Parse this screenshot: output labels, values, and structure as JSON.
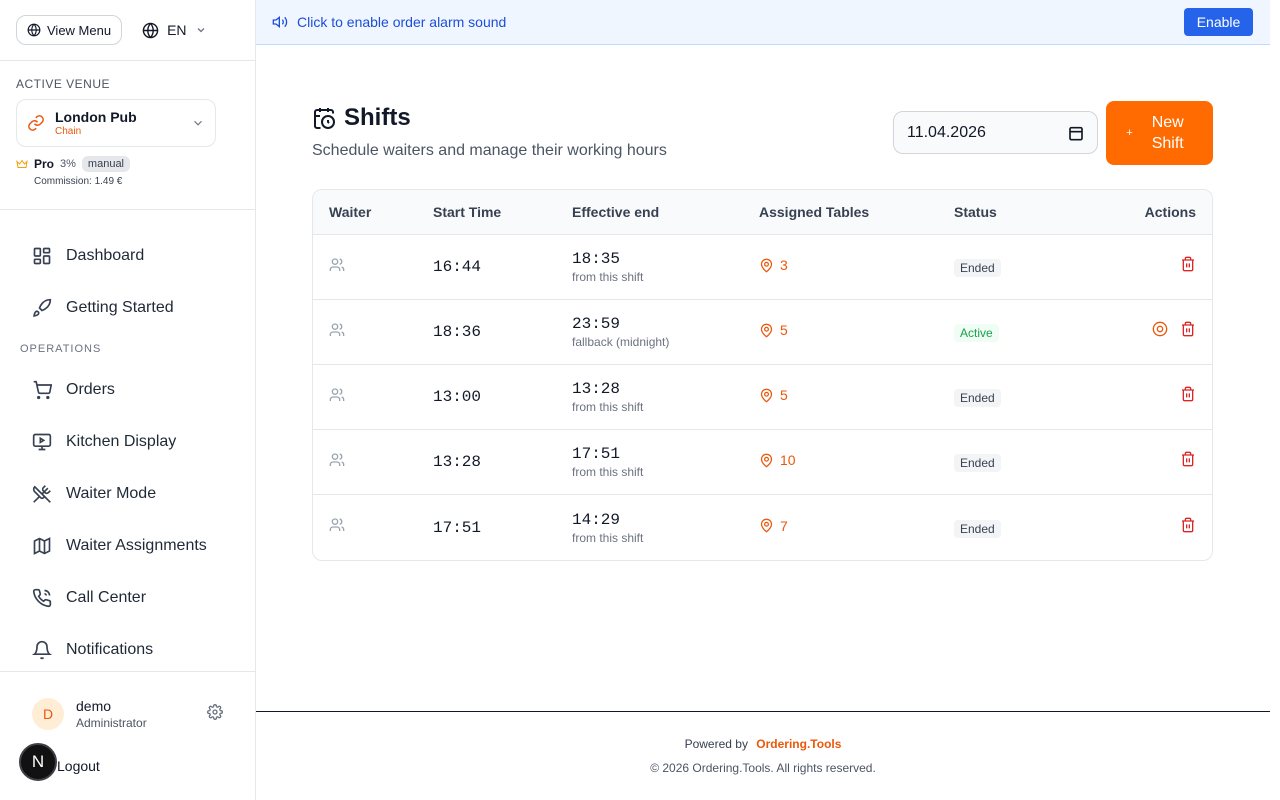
{
  "sidebar": {
    "view_menu_label": "View Menu",
    "language": "EN",
    "active_venue_label": "ACTIVE VENUE",
    "venue": {
      "name": "London Pub",
      "type": "Chain"
    },
    "plan": {
      "name": "Pro",
      "percent": "3%",
      "badge": "manual",
      "commission": "Commission: 1.49 €"
    },
    "nav_main": [
      {
        "label": "Dashboard",
        "icon": "dashboard-icon"
      },
      {
        "label": "Getting Started",
        "icon": "rocket-icon"
      }
    ],
    "section_operations": "OPERATIONS",
    "nav_operations": [
      {
        "label": "Orders",
        "icon": "cart-icon"
      },
      {
        "label": "Kitchen Display",
        "icon": "monitor-play-icon"
      },
      {
        "label": "Waiter Mode",
        "icon": "utensils-crossed-icon"
      },
      {
        "label": "Waiter Assignments",
        "icon": "map-icon"
      },
      {
        "label": "Call Center",
        "icon": "phone-icon"
      },
      {
        "label": "Notifications",
        "icon": "bell-icon"
      }
    ],
    "user": {
      "initial": "D",
      "name": "demo",
      "role": "Administrator"
    },
    "logout_label": "Logout",
    "n_badge": "N"
  },
  "banner": {
    "text": "Click to enable order alarm sound",
    "button_label": "Enable"
  },
  "main": {
    "title": "Shifts",
    "subtitle": "Schedule waiters and manage their working hours",
    "date_value": "11.04.2026",
    "new_shift_label": "New Shift",
    "new_shift_icon": "+"
  },
  "table": {
    "headers": {
      "waiter": "Waiter",
      "start": "Start Time",
      "end": "Effective end",
      "tables": "Assigned Tables",
      "status": "Status",
      "actions": "Actions"
    },
    "rows": [
      {
        "start": "16:44",
        "end": "18:35",
        "end_note": "from this shift",
        "tables": "3",
        "status": "Ended",
        "active": false
      },
      {
        "start": "18:36",
        "end": "23:59",
        "end_note": "fallback (midnight)",
        "tables": "5",
        "status": "Active",
        "active": true
      },
      {
        "start": "13:00",
        "end": "13:28",
        "end_note": "from this shift",
        "tables": "5",
        "status": "Ended",
        "active": false
      },
      {
        "start": "13:28",
        "end": "17:51",
        "end_note": "from this shift",
        "tables": "10",
        "status": "Ended",
        "active": false
      },
      {
        "start": "17:51",
        "end": "14:29",
        "end_note": "from this shift",
        "tables": "7",
        "status": "Ended",
        "active": false
      }
    ]
  },
  "footer": {
    "powered_by": "Powered by",
    "brand": "Ordering.Tools",
    "copyright": "© 2026 Ordering.Tools. All rights reserved."
  },
  "colors": {
    "accent": "#ff6b00",
    "banner_bg": "#eff6ff",
    "enable_button": "#2563eb",
    "danger": "#dc2626",
    "active_status": "#16a34a"
  }
}
